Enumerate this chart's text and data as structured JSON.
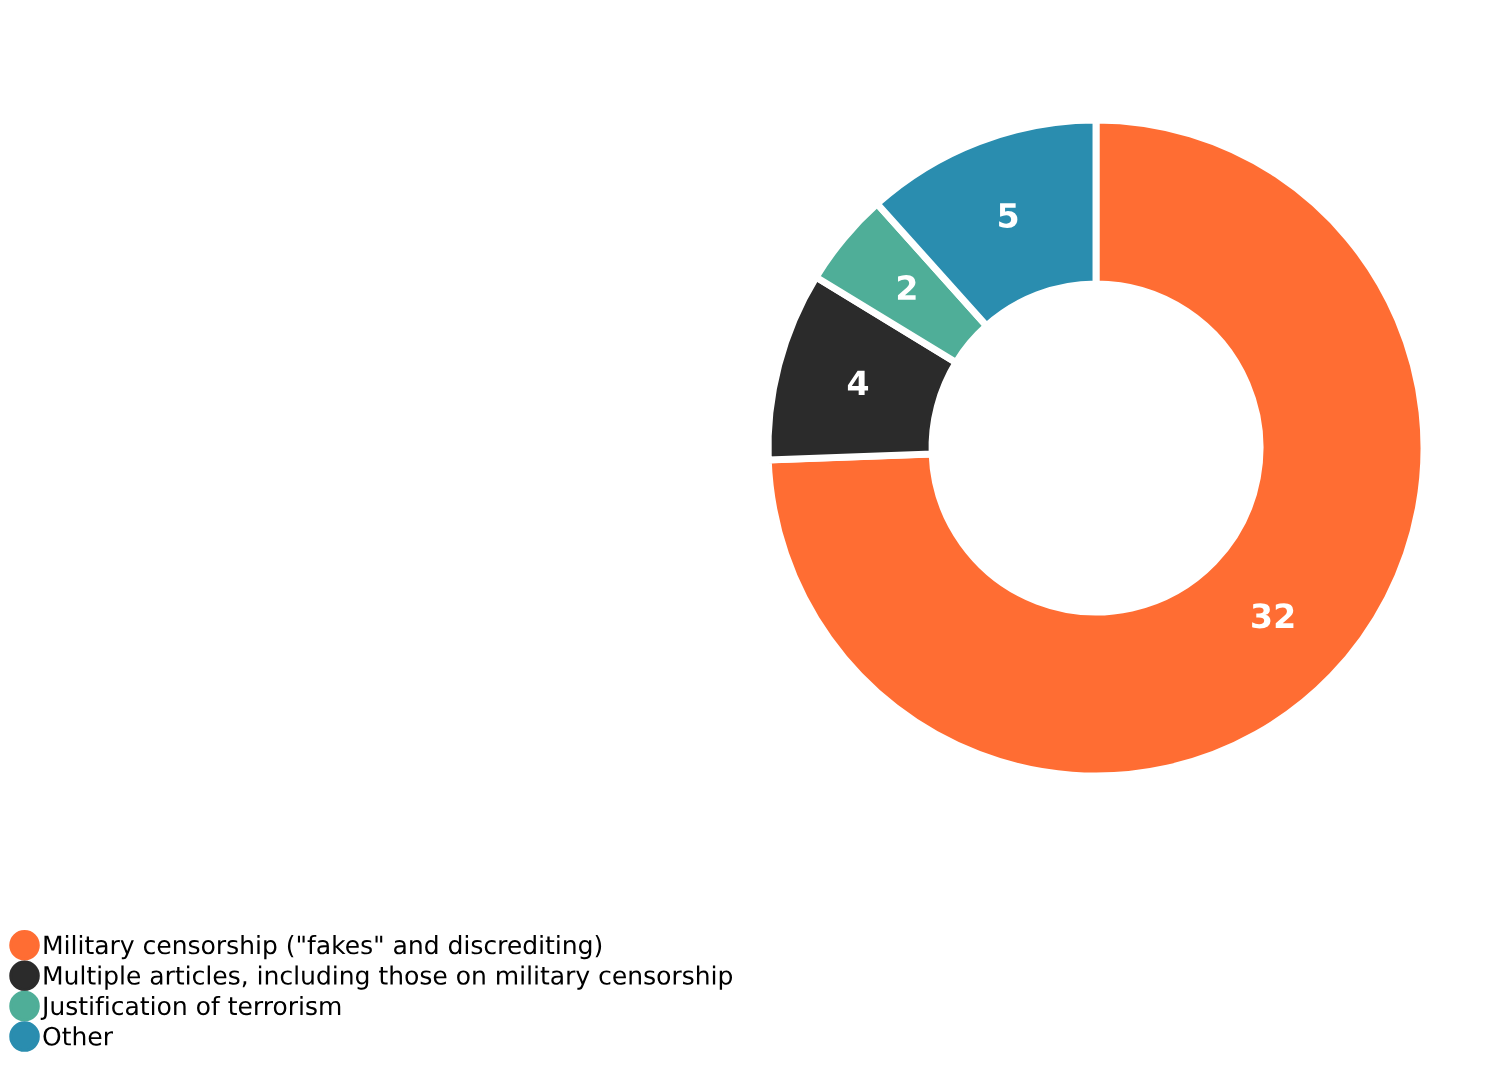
{
  "chart_data": {
    "type": "donut",
    "categories": [
      "Military censorship (\"fakes\" and discrediting)",
      "Multiple articles, including those on military censorship",
      "Justification of terrorism",
      "Other"
    ],
    "values": [
      32,
      4,
      2,
      5
    ],
    "colors": [
      "#ff6d33",
      "#2b2b2b",
      "#4fae98",
      "#2a8daf"
    ],
    "data_labels": true,
    "legend": "bottom left"
  }
}
